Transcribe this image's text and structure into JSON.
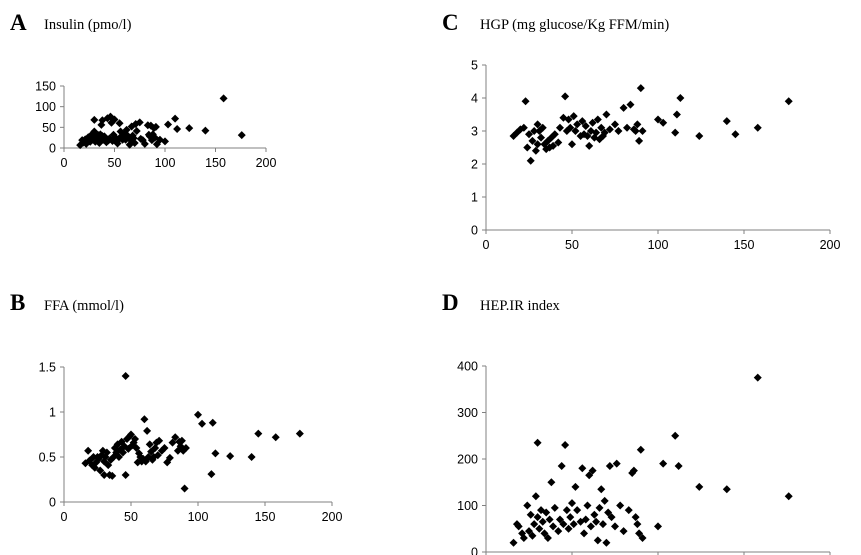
{
  "chart_data": [
    {
      "id": "A",
      "type": "scatter",
      "letter": "A",
      "title": "Insulin (pmo/l)",
      "xlim": [
        0,
        200
      ],
      "ylim": [
        0,
        150
      ],
      "xticks": [
        0,
        50,
        100,
        150,
        200
      ],
      "yticks": [
        0,
        50,
        100,
        150
      ],
      "ytick_labels": [
        "0",
        "50",
        "100",
        "150"
      ],
      "grid": false,
      "marker": "diamond",
      "color": "#000000",
      "points": [
        [
          16,
          7
        ],
        [
          18,
          19
        ],
        [
          19,
          13
        ],
        [
          21,
          21
        ],
        [
          22,
          10
        ],
        [
          24,
          26
        ],
        [
          25,
          17
        ],
        [
          26,
          15
        ],
        [
          27,
          28
        ],
        [
          28,
          20
        ],
        [
          28,
          34
        ],
        [
          29,
          23
        ],
        [
          30,
          68
        ],
        [
          30,
          40
        ],
        [
          31,
          15
        ],
        [
          32,
          27
        ],
        [
          32,
          21
        ],
        [
          33,
          18
        ],
        [
          34,
          31
        ],
        [
          35,
          24
        ],
        [
          35,
          12
        ],
        [
          36,
          33
        ],
        [
          37,
          56
        ],
        [
          38,
          67
        ],
        [
          38,
          29
        ],
        [
          39,
          20
        ],
        [
          40,
          28
        ],
        [
          42,
          14
        ],
        [
          43,
          72
        ],
        [
          44,
          18
        ],
        [
          45,
          23
        ],
        [
          46,
          76
        ],
        [
          47,
          61
        ],
        [
          48,
          17
        ],
        [
          49,
          32
        ],
        [
          50,
          69
        ],
        [
          51,
          25
        ],
        [
          52,
          21
        ],
        [
          53,
          11
        ],
        [
          55,
          60
        ],
        [
          55,
          23
        ],
        [
          56,
          40
        ],
        [
          57,
          29
        ],
        [
          58,
          20
        ],
        [
          59,
          24
        ],
        [
          60,
          34
        ],
        [
          61,
          20
        ],
        [
          62,
          44
        ],
        [
          63,
          30
        ],
        [
          64,
          24
        ],
        [
          65,
          8
        ],
        [
          66,
          20
        ],
        [
          67,
          52
        ],
        [
          68,
          30
        ],
        [
          69,
          24
        ],
        [
          70,
          12
        ],
        [
          71,
          58
        ],
        [
          72,
          41
        ],
        [
          75,
          62
        ],
        [
          76,
          22
        ],
        [
          78,
          19
        ],
        [
          80,
          10
        ],
        [
          83,
          55
        ],
        [
          84,
          32
        ],
        [
          85,
          28
        ],
        [
          86,
          54
        ],
        [
          87,
          19
        ],
        [
          88,
          33
        ],
        [
          89,
          48
        ],
        [
          90,
          25
        ],
        [
          91,
          51
        ],
        [
          92,
          9
        ],
        [
          95,
          20
        ],
        [
          100,
          16
        ],
        [
          103,
          57
        ],
        [
          110,
          71
        ],
        [
          112,
          46
        ],
        [
          124,
          48
        ],
        [
          140,
          42
        ],
        [
          158,
          120
        ],
        [
          176,
          31
        ]
      ]
    },
    {
      "id": "B",
      "type": "scatter",
      "letter": "B",
      "title": "FFA (mmol/l)",
      "xlim": [
        0,
        200
      ],
      "ylim": [
        0,
        1.5
      ],
      "xticks": [
        0,
        50,
        100,
        150,
        200
      ],
      "yticks": [
        0,
        0.5,
        1,
        1.5
      ],
      "ytick_labels": [
        "0",
        "0.5",
        "1",
        "1.5"
      ],
      "grid": false,
      "marker": "diamond",
      "color": "#000000",
      "points": [
        [
          16,
          0.43
        ],
        [
          18,
          0.57
        ],
        [
          19,
          0.46
        ],
        [
          21,
          0.41
        ],
        [
          22,
          0.5
        ],
        [
          23,
          0.38
        ],
        [
          24,
          0.44
        ],
        [
          25,
          0.5
        ],
        [
          26,
          0.48
        ],
        [
          27,
          0.35
        ],
        [
          28,
          0.52
        ],
        [
          29,
          0.57
        ],
        [
          30,
          0.3
        ],
        [
          30,
          0.45
        ],
        [
          31,
          0.5
        ],
        [
          32,
          0.55
        ],
        [
          33,
          0.41
        ],
        [
          34,
          0.3
        ],
        [
          35,
          0.47
        ],
        [
          36,
          0.29
        ],
        [
          37,
          0.5
        ],
        [
          38,
          0.6
        ],
        [
          39,
          0.55
        ],
        [
          40,
          0.64
        ],
        [
          41,
          0.5
        ],
        [
          42,
          0.58
        ],
        [
          43,
          0.67
        ],
        [
          44,
          0.55
        ],
        [
          45,
          0.62
        ],
        [
          46,
          1.4
        ],
        [
          46,
          0.3
        ],
        [
          47,
          0.7
        ],
        [
          48,
          0.59
        ],
        [
          49,
          0.73
        ],
        [
          50,
          0.75
        ],
        [
          51,
          0.63
        ],
        [
          52,
          0.66
        ],
        [
          53,
          0.7
        ],
        [
          54,
          0.6
        ],
        [
          55,
          0.44
        ],
        [
          56,
          0.54
        ],
        [
          57,
          0.5
        ],
        [
          58,
          0.45
        ],
        [
          59,
          0.48
        ],
        [
          60,
          0.92
        ],
        [
          61,
          0.45
        ],
        [
          62,
          0.79
        ],
        [
          63,
          0.5
        ],
        [
          64,
          0.64
        ],
        [
          65,
          0.56
        ],
        [
          66,
          0.47
        ],
        [
          67,
          0.5
        ],
        [
          68,
          0.6
        ],
        [
          69,
          0.66
        ],
        [
          70,
          0.52
        ],
        [
          71,
          0.68
        ],
        [
          73,
          0.57
        ],
        [
          75,
          0.6
        ],
        [
          77,
          0.44
        ],
        [
          79,
          0.49
        ],
        [
          81,
          0.66
        ],
        [
          83,
          0.72
        ],
        [
          85,
          0.57
        ],
        [
          86,
          0.67
        ],
        [
          87,
          0.62
        ],
        [
          88,
          0.68
        ],
        [
          89,
          0.57
        ],
        [
          90,
          0.15
        ],
        [
          91,
          0.6
        ],
        [
          100,
          0.97
        ],
        [
          103,
          0.87
        ],
        [
          110,
          0.31
        ],
        [
          111,
          0.88
        ],
        [
          113,
          0.54
        ],
        [
          124,
          0.51
        ],
        [
          140,
          0.5
        ],
        [
          145,
          0.76
        ],
        [
          158,
          0.72
        ],
        [
          176,
          0.76
        ]
      ]
    },
    {
      "id": "C",
      "type": "scatter",
      "letter": "C",
      "title": "HGP (mg glucose/Kg FFM/min)",
      "xlim": [
        0,
        200
      ],
      "ylim": [
        0,
        5
      ],
      "xticks": [
        0,
        50,
        100,
        150,
        200
      ],
      "yticks": [
        0,
        1,
        2,
        3,
        4,
        5
      ],
      "ytick_labels": [
        "0",
        "1",
        "2",
        "3",
        "4",
        "5"
      ],
      "grid": false,
      "marker": "diamond",
      "color": "#000000",
      "points": [
        [
          16,
          2.85
        ],
        [
          18,
          2.95
        ],
        [
          20,
          3.05
        ],
        [
          22,
          3.1
        ],
        [
          23,
          3.9
        ],
        [
          24,
          2.5
        ],
        [
          25,
          2.9
        ],
        [
          26,
          2.1
        ],
        [
          27,
          2.7
        ],
        [
          28,
          3.0
        ],
        [
          29,
          2.4
        ],
        [
          30,
          3.2
        ],
        [
          30,
          2.6
        ],
        [
          31,
          3.0
        ],
        [
          32,
          2.8
        ],
        [
          33,
          3.1
        ],
        [
          34,
          2.6
        ],
        [
          35,
          2.45
        ],
        [
          36,
          2.7
        ],
        [
          37,
          2.5
        ],
        [
          38,
          2.8
        ],
        [
          39,
          2.55
        ],
        [
          40,
          2.9
        ],
        [
          42,
          2.65
        ],
        [
          43,
          3.1
        ],
        [
          45,
          3.4
        ],
        [
          46,
          4.05
        ],
        [
          47,
          3.0
        ],
        [
          48,
          3.35
        ],
        [
          49,
          3.1
        ],
        [
          50,
          2.6
        ],
        [
          51,
          3.45
        ],
        [
          52,
          3.0
        ],
        [
          53,
          3.2
        ],
        [
          55,
          2.85
        ],
        [
          56,
          3.3
        ],
        [
          57,
          2.9
        ],
        [
          58,
          3.15
        ],
        [
          59,
          2.85
        ],
        [
          60,
          2.55
        ],
        [
          61,
          3.0
        ],
        [
          62,
          3.25
        ],
        [
          63,
          2.8
        ],
        [
          64,
          2.95
        ],
        [
          65,
          3.35
        ],
        [
          66,
          2.75
        ],
        [
          67,
          3.1
        ],
        [
          68,
          2.85
        ],
        [
          69,
          2.95
        ],
        [
          70,
          3.5
        ],
        [
          72,
          3.05
        ],
        [
          75,
          3.2
        ],
        [
          77,
          3.0
        ],
        [
          80,
          3.7
        ],
        [
          82,
          3.1
        ],
        [
          84,
          3.8
        ],
        [
          86,
          3.05
        ],
        [
          87,
          3.0
        ],
        [
          88,
          3.2
        ],
        [
          89,
          2.7
        ],
        [
          90,
          4.3
        ],
        [
          91,
          3.0
        ],
        [
          100,
          3.35
        ],
        [
          103,
          3.25
        ],
        [
          110,
          2.95
        ],
        [
          111,
          3.5
        ],
        [
          113,
          4.0
        ],
        [
          124,
          2.85
        ],
        [
          140,
          3.3
        ],
        [
          145,
          2.9
        ],
        [
          158,
          3.1
        ],
        [
          176,
          3.9
        ]
      ]
    },
    {
      "id": "D",
      "type": "scatter",
      "letter": "D",
      "title": "HEP.IR index",
      "xlim": [
        0,
        200
      ],
      "ylim": [
        0,
        400
      ],
      "xticks": [
        0,
        50,
        100,
        150,
        200
      ],
      "yticks": [
        0,
        100,
        200,
        300,
        400
      ],
      "ytick_labels": [
        "0",
        "100",
        "200",
        "300",
        "400"
      ],
      "grid": false,
      "marker": "diamond",
      "color": "#000000",
      "points": [
        [
          16,
          20
        ],
        [
          18,
          60
        ],
        [
          19,
          55
        ],
        [
          21,
          40
        ],
        [
          22,
          30
        ],
        [
          24,
          100
        ],
        [
          25,
          45
        ],
        [
          26,
          80
        ],
        [
          27,
          35
        ],
        [
          28,
          60
        ],
        [
          29,
          120
        ],
        [
          30,
          235
        ],
        [
          30,
          75
        ],
        [
          31,
          50
        ],
        [
          32,
          90
        ],
        [
          33,
          65
        ],
        [
          34,
          40
        ],
        [
          35,
          85
        ],
        [
          36,
          30
        ],
        [
          37,
          70
        ],
        [
          38,
          150
        ],
        [
          39,
          55
        ],
        [
          40,
          95
        ],
        [
          42,
          45
        ],
        [
          43,
          70
        ],
        [
          44,
          185
        ],
        [
          45,
          60
        ],
        [
          46,
          230
        ],
        [
          47,
          90
        ],
        [
          48,
          50
        ],
        [
          49,
          75
        ],
        [
          50,
          105
        ],
        [
          51,
          60
        ],
        [
          52,
          140
        ],
        [
          53,
          90
        ],
        [
          55,
          65
        ],
        [
          56,
          180
        ],
        [
          57,
          40
        ],
        [
          58,
          70
        ],
        [
          59,
          100
        ],
        [
          60,
          165
        ],
        [
          61,
          55
        ],
        [
          62,
          175
        ],
        [
          63,
          80
        ],
        [
          64,
          65
        ],
        [
          65,
          25
        ],
        [
          66,
          95
        ],
        [
          67,
          135
        ],
        [
          68,
          60
        ],
        [
          69,
          110
        ],
        [
          70,
          20
        ],
        [
          71,
          85
        ],
        [
          72,
          185
        ],
        [
          73,
          75
        ],
        [
          75,
          55
        ],
        [
          76,
          190
        ],
        [
          78,
          100
        ],
        [
          80,
          45
        ],
        [
          83,
          90
        ],
        [
          85,
          170
        ],
        [
          86,
          175
        ],
        [
          87,
          75
        ],
        [
          88,
          60
        ],
        [
          89,
          40
        ],
        [
          90,
          220
        ],
        [
          91,
          30
        ],
        [
          100,
          55
        ],
        [
          103,
          190
        ],
        [
          110,
          250
        ],
        [
          112,
          185
        ],
        [
          124,
          140
        ],
        [
          140,
          135
        ],
        [
          158,
          375
        ],
        [
          176,
          120
        ]
      ]
    }
  ]
}
